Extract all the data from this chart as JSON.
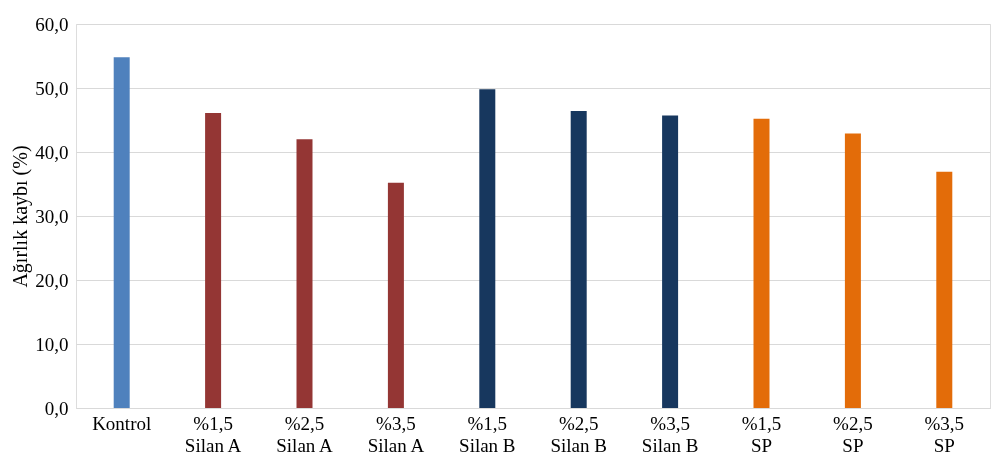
{
  "chart_data": {
    "type": "bar",
    "ylabel": "Ağırlık kaybı (%)",
    "categories": [
      "Kontrol",
      "%1,5\nSilan A",
      "%2,5\nSilan A",
      "%3,5\nSilan A",
      "%1,5\nSilan B",
      "%2,5\nSilan B",
      "%3,5\nSilan B",
      "%1,5\nSP",
      "%2,5\nSP",
      "%3,5\nSP"
    ],
    "values": [
      54.8,
      46.1,
      42.0,
      35.2,
      49.8,
      46.4,
      45.7,
      45.2,
      42.9,
      36.9
    ],
    "colors": [
      "#4f81bd",
      "#943634",
      "#943634",
      "#943634",
      "#17375e",
      "#17375e",
      "#17375e",
      "#e36c09",
      "#e36c09",
      "#e36c09"
    ],
    "ylim": [
      0,
      60
    ],
    "yticks": [
      {
        "value": 0,
        "label": "0,0"
      },
      {
        "value": 10,
        "label": "10,0"
      },
      {
        "value": 20,
        "label": "20,0"
      },
      {
        "value": 30,
        "label": "30,0"
      },
      {
        "value": 40,
        "label": "40,0"
      },
      {
        "value": 50,
        "label": "50,0"
      },
      {
        "value": 60,
        "label": "60,0"
      }
    ],
    "grid": "y"
  }
}
